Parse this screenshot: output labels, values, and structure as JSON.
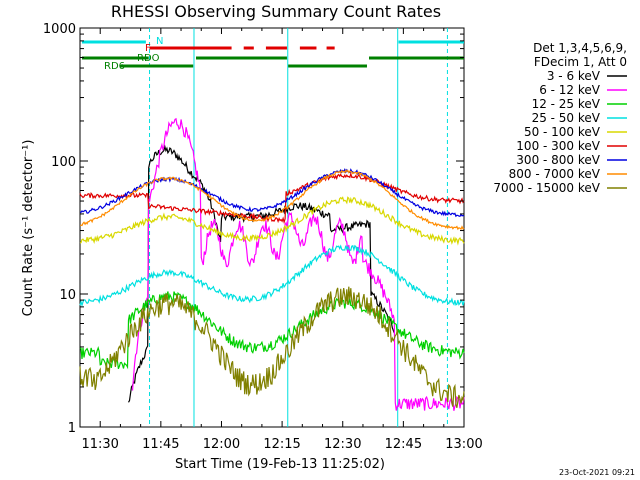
{
  "chart_data": {
    "type": "line",
    "title": "RHESSI Observing Summary Count Rates",
    "xlabel": "Start Time (19-Feb-13 11:25:02)",
    "ylabel": "Count Rate (s⁻¹ detector⁻¹)",
    "yscale": "log",
    "ylim": [
      1,
      1000
    ],
    "xlim_minutes": [
      0,
      95
    ],
    "xtick_labels": [
      "11:30",
      "11:45",
      "12:00",
      "12:15",
      "12:30",
      "12:45",
      "13:00"
    ],
    "ytick_labels": [
      "1",
      "10",
      "100",
      "1000"
    ],
    "legend": {
      "header": [
        "Det 1,3,4,5,6,9,",
        "FDecim 1, Att 0"
      ],
      "placement": "right"
    },
    "flags": [
      {
        "label": "N",
        "color": "#00e0e0"
      },
      {
        "label": "F",
        "color": "#e00000"
      },
      {
        "label": "RDO",
        "color": "#008000"
      },
      {
        "label": "RD6",
        "color": "#008000"
      }
    ],
    "series": [
      {
        "name": "3 - 6 keV",
        "color": "#000000"
      },
      {
        "name": "6 - 12 keV",
        "color": "#ff00ff"
      },
      {
        "name": "12 - 25 keV",
        "color": "#00d000"
      },
      {
        "name": "25 - 50 keV",
        "color": "#00e0e0"
      },
      {
        "name": "50 - 100 keV",
        "color": "#d8d800"
      },
      {
        "name": "100 - 300 keV",
        "color": "#e00000"
      },
      {
        "name": "300 - 800 keV",
        "color": "#0000e0"
      },
      {
        "name": "800 - 7000 keV",
        "color": "#ff8c00"
      },
      {
        "name": "7000 - 15000 keV",
        "color": "#808000"
      }
    ]
  },
  "timestamp": "23-Oct-2021 09:21"
}
